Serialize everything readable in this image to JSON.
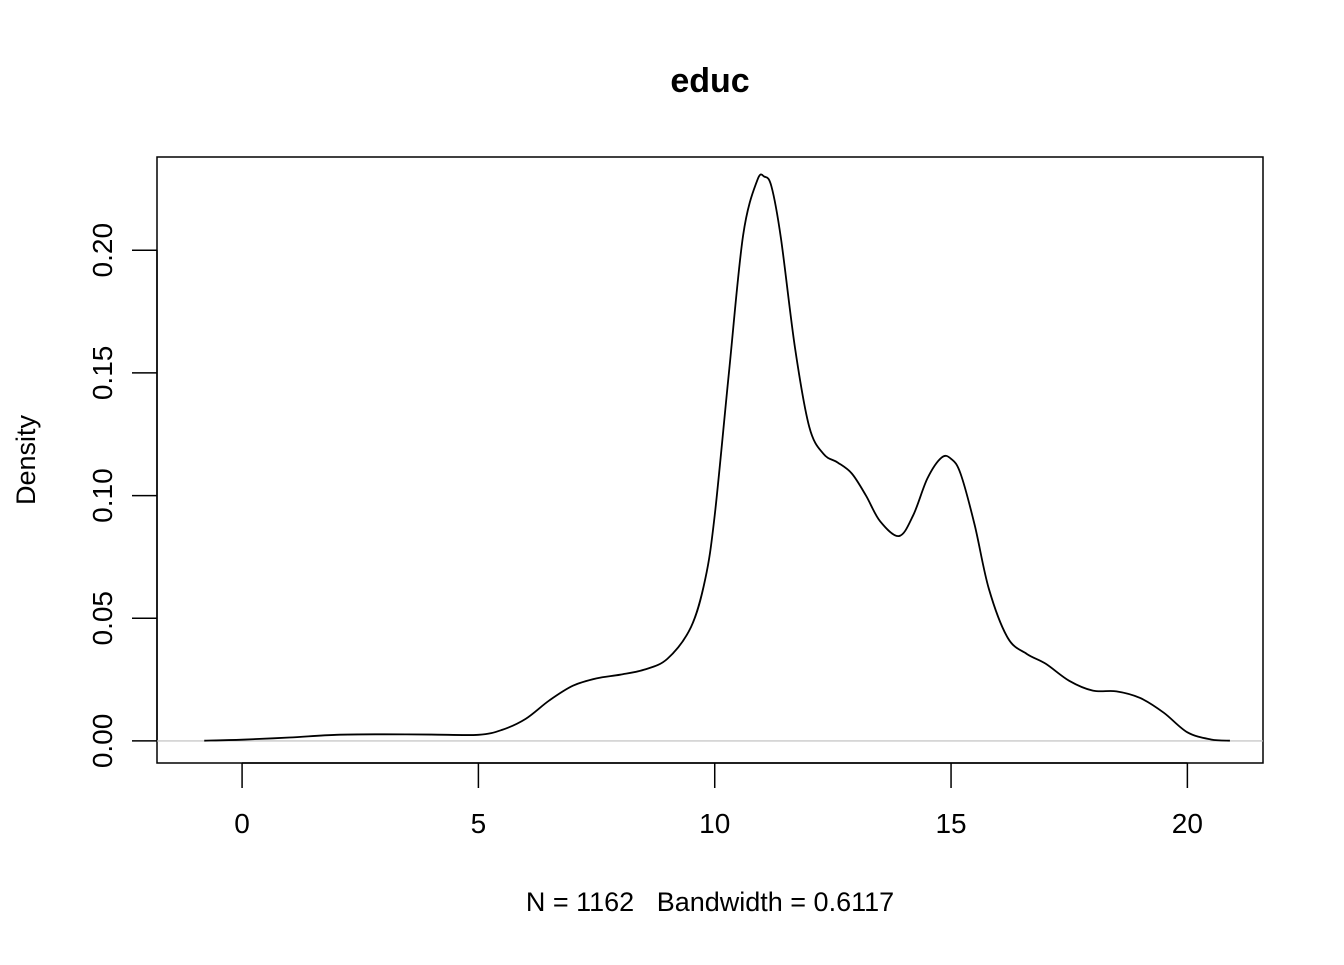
{
  "chart_data": {
    "type": "line",
    "title": "educ",
    "xlabel": "N = 1162   Bandwidth = 0.6117",
    "ylabel": "Density",
    "xlim": [
      -1.8,
      21.6
    ],
    "ylim": [
      -0.009,
      0.238
    ],
    "x_ticks": [
      0,
      5,
      10,
      15,
      20
    ],
    "x_tick_labels": [
      "0",
      "5",
      "10",
      "15",
      "20"
    ],
    "y_ticks": [
      0.0,
      0.05,
      0.1,
      0.15,
      0.2
    ],
    "y_tick_labels": [
      "0.00",
      "0.05",
      "0.10",
      "0.15",
      "0.20"
    ],
    "grid": false,
    "zero_line": true,
    "series": [
      {
        "color": "#000000",
        "x": [
          -0.8,
          0.0,
          1.0,
          2.0,
          3.0,
          4.0,
          5.0,
          5.5,
          6.0,
          6.5,
          7.0,
          7.5,
          8.0,
          8.5,
          9.0,
          9.5,
          9.8,
          10.0,
          10.3,
          10.6,
          10.9,
          11.05,
          11.2,
          11.4,
          11.7,
          12.0,
          12.3,
          12.6,
          12.9,
          13.2,
          13.5,
          13.9,
          14.2,
          14.5,
          14.8,
          15.0,
          15.2,
          15.5,
          15.8,
          16.2,
          16.6,
          17.0,
          17.5,
          18.0,
          18.5,
          19.0,
          19.5,
          20.0,
          20.5,
          20.9
        ],
        "values": [
          0.0001,
          0.0005,
          0.0014,
          0.0025,
          0.0027,
          0.0026,
          0.0025,
          0.0045,
          0.009,
          0.0165,
          0.0225,
          0.0255,
          0.027,
          0.029,
          0.0335,
          0.0465,
          0.066,
          0.092,
          0.15,
          0.206,
          0.2285,
          0.23,
          0.226,
          0.205,
          0.16,
          0.128,
          0.117,
          0.1135,
          0.109,
          0.1,
          0.0895,
          0.0835,
          0.092,
          0.107,
          0.1155,
          0.115,
          0.109,
          0.088,
          0.062,
          0.042,
          0.0355,
          0.0315,
          0.0245,
          0.0205,
          0.0202,
          0.0175,
          0.0115,
          0.0035,
          0.0006,
          0.0001
        ]
      }
    ]
  }
}
